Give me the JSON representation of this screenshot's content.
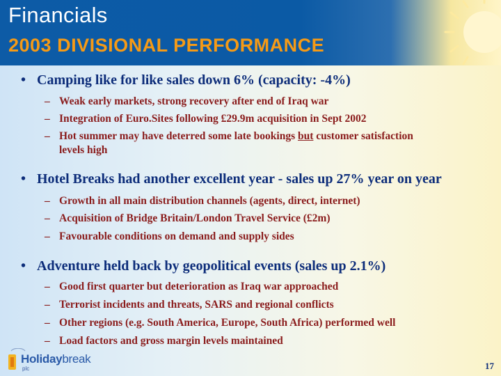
{
  "header": {
    "title": "Financials",
    "subtitle": "2003 DIVISIONAL PERFORMANCE"
  },
  "bullets": [
    {
      "text": "Camping like for like sales down 6% (capacity: -4%)",
      "subitems": [
        "Weak early markets, strong recovery after end of Iraq war",
        "Integration of Euro.Sites following £29.9m acquisition in Sept 2002",
        "Hot summer may have deterred some late bookings but customer satisfaction levels high"
      ]
    },
    {
      "text": "Hotel Breaks had another excellent year - sales up 27% year on year",
      "subitems": [
        "Growth in all main distribution channels (agents, direct, internet)",
        "Acquisition of Bridge Britain/London Travel Service (£2m)",
        "Favourable conditions on demand and supply sides"
      ]
    },
    {
      "text": "Adventure held back by geopolitical events (sales up 2.1%)",
      "subitems": [
        "Good first quarter but deterioration as Iraq war approached",
        "Terrorist incidents and threats, SARS and regional conflicts",
        "Other regions (e.g. South America, Europe, South Africa) performed well",
        "Load factors and gross margin levels maintained"
      ]
    }
  ],
  "special": {
    "hot_pre": "Hot summer may have deterred some late bookings ",
    "hot_underline": "but",
    "hot_post": " customer satisfaction",
    "hot_line2": "levels high"
  },
  "logo": {
    "bold": "Holiday",
    "light": "break",
    "plc": "plc"
  },
  "footer": {
    "page_number": "17"
  },
  "symbols": {
    "bullet": "•",
    "dash": "–"
  },
  "colors": {
    "header_blue": "#0d5ba6",
    "subtitle_orange": "#f59a16",
    "bullet_text": "#0d2d7a",
    "sub_text": "#8a1c1c"
  }
}
